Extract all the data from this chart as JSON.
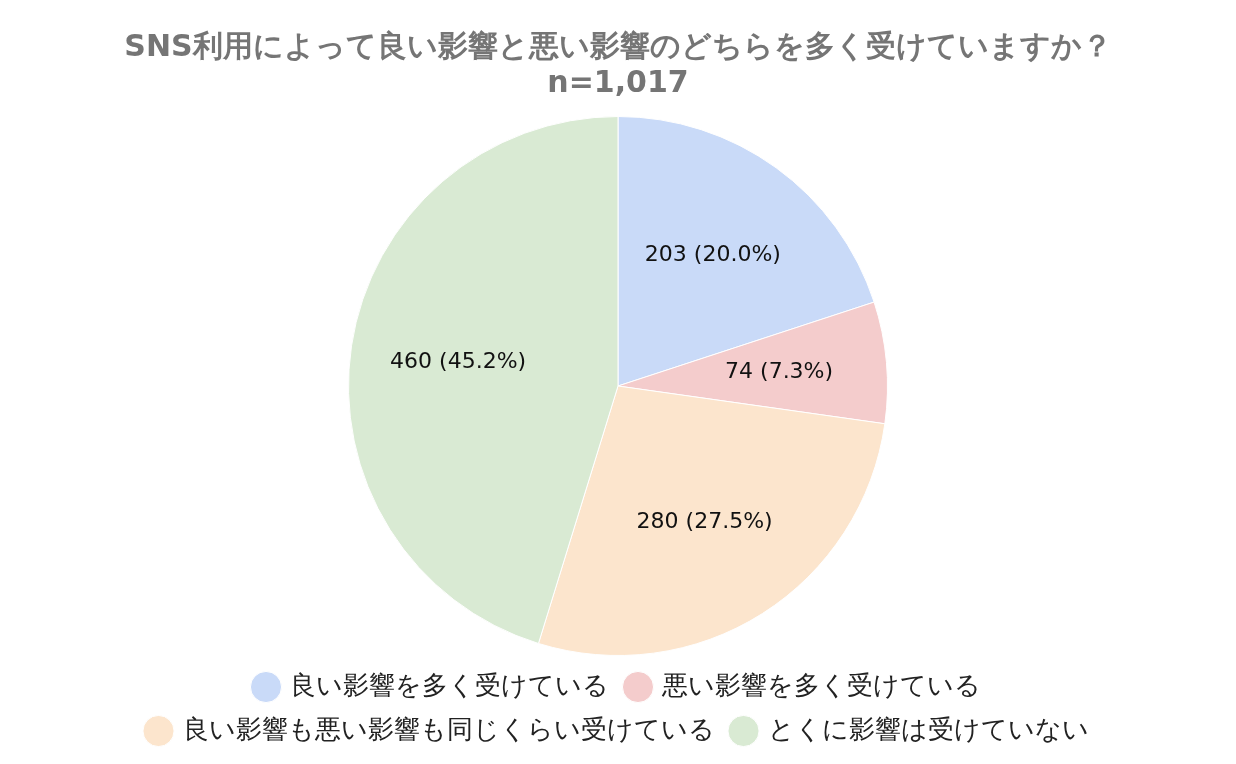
{
  "chart_data": {
    "type": "pie",
    "title": "SNS利用によって良い影響と悪い影響のどちらを多く受けていますか？",
    "subtitle": "n=1,017",
    "categories": [
      "良い影響を多く受けている",
      "悪い影響を多く受けている",
      "良い影響も悪い影響も同じくらい受けている",
      "とくに影響は受けていない"
    ],
    "values": [
      203,
      74,
      280,
      460
    ],
    "colors": [
      "#c9daf8",
      "#f4cccc",
      "#fce5cd",
      "#d9ead3"
    ],
    "value_labels": [
      "203 (20.0%)",
      "74 (7.3%)",
      "280 (27.5%)",
      "460 (45.2%)"
    ],
    "legend": "bottom"
  }
}
